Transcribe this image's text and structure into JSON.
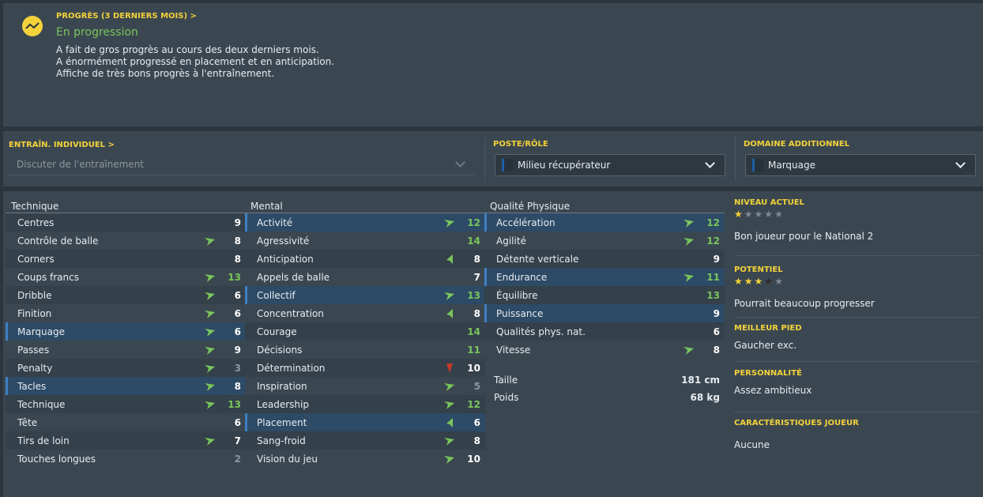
{
  "progress": {
    "title": "PROGRÈS (3 DERNIERS MOIS) >",
    "status": "En progression",
    "lines": [
      "A fait de gros progrès au cours des deux derniers mois.",
      "A énormément progressé en placement et en anticipation.",
      "Affiche de très bons progrès à l'entraînement."
    ]
  },
  "training": {
    "title": "ENTRAÎN. INDIVIDUEL >",
    "placeholder": "Discuter de l'entraînement"
  },
  "role": {
    "title": "POSTE/RÔLE",
    "value": "Milieu récupérateur"
  },
  "extra_domain": {
    "title": "DOMAINE ADDITIONNEL",
    "value": "Marquage"
  },
  "columns": {
    "technique": {
      "title": "Technique",
      "rows": [
        {
          "label": "Centres",
          "value": "9",
          "arrow": "",
          "style": "white",
          "hl": false
        },
        {
          "label": "Contrôle de balle",
          "value": "8",
          "arrow": "up",
          "style": "white",
          "hl": false
        },
        {
          "label": "Corners",
          "value": "8",
          "arrow": "",
          "style": "white",
          "hl": false
        },
        {
          "label": "Coups francs",
          "value": "13",
          "arrow": "up",
          "style": "green",
          "hl": false
        },
        {
          "label": "Dribble",
          "value": "6",
          "arrow": "up",
          "style": "white",
          "hl": false
        },
        {
          "label": "Finition",
          "value": "6",
          "arrow": "up",
          "style": "white",
          "hl": false
        },
        {
          "label": "Marquage",
          "value": "6",
          "arrow": "up",
          "style": "white",
          "hl": true
        },
        {
          "label": "Passes",
          "value": "9",
          "arrow": "up",
          "style": "white",
          "hl": false
        },
        {
          "label": "Penalty",
          "value": "3",
          "arrow": "up",
          "style": "grey",
          "hl": false
        },
        {
          "label": "Tacles",
          "value": "8",
          "arrow": "up",
          "style": "white",
          "hl": true
        },
        {
          "label": "Technique",
          "value": "13",
          "arrow": "up",
          "style": "green",
          "hl": false
        },
        {
          "label": "Tête",
          "value": "6",
          "arrow": "",
          "style": "white",
          "hl": false
        },
        {
          "label": "Tirs de loin",
          "value": "7",
          "arrow": "up",
          "style": "white",
          "hl": false
        },
        {
          "label": "Touches longues",
          "value": "2",
          "arrow": "",
          "style": "grey",
          "hl": false
        }
      ]
    },
    "mental": {
      "title": "Mental",
      "rows": [
        {
          "label": "Activité",
          "value": "12",
          "arrow": "up",
          "style": "green",
          "hl": true
        },
        {
          "label": "Agressivité",
          "value": "14",
          "arrow": "",
          "style": "green",
          "hl": false
        },
        {
          "label": "Anticipation",
          "value": "8",
          "arrow": "upsteep",
          "style": "white",
          "hl": false
        },
        {
          "label": "Appels de balle",
          "value": "7",
          "arrow": "",
          "style": "white",
          "hl": false
        },
        {
          "label": "Collectif",
          "value": "13",
          "arrow": "up",
          "style": "green",
          "hl": true
        },
        {
          "label": "Concentration",
          "value": "8",
          "arrow": "upsteep",
          "style": "white",
          "hl": false
        },
        {
          "label": "Courage",
          "value": "14",
          "arrow": "",
          "style": "green",
          "hl": false
        },
        {
          "label": "Décisions",
          "value": "11",
          "arrow": "",
          "style": "green",
          "hl": false
        },
        {
          "label": "Détermination",
          "value": "10",
          "arrow": "down",
          "style": "white",
          "hl": false
        },
        {
          "label": "Inspiration",
          "value": "5",
          "arrow": "up",
          "style": "grey",
          "hl": false
        },
        {
          "label": "Leadership",
          "value": "12",
          "arrow": "up",
          "style": "green",
          "hl": false
        },
        {
          "label": "Placement",
          "value": "6",
          "arrow": "upsteep",
          "style": "white",
          "hl": true
        },
        {
          "label": "Sang-froid",
          "value": "8",
          "arrow": "up",
          "style": "white",
          "hl": false
        },
        {
          "label": "Vision du jeu",
          "value": "10",
          "arrow": "up",
          "style": "white",
          "hl": false
        }
      ]
    },
    "physical": {
      "title": "Qualité Physique",
      "rows": [
        {
          "label": "Accélération",
          "value": "12",
          "arrow": "up",
          "style": "green",
          "hl": true
        },
        {
          "label": "Agilité",
          "value": "12",
          "arrow": "up",
          "style": "green",
          "hl": false
        },
        {
          "label": "Détente verticale",
          "value": "9",
          "arrow": "",
          "style": "white",
          "hl": false
        },
        {
          "label": "Endurance",
          "value": "11",
          "arrow": "up",
          "style": "green",
          "hl": true
        },
        {
          "label": "Équilibre",
          "value": "13",
          "arrow": "",
          "style": "green",
          "hl": false
        },
        {
          "label": "Puissance",
          "value": "9",
          "arrow": "",
          "style": "white",
          "hl": true
        },
        {
          "label": "Qualités phys. nat.",
          "value": "6",
          "arrow": "",
          "style": "white",
          "hl": false
        },
        {
          "label": "Vitesse",
          "value": "8",
          "arrow": "up",
          "style": "white",
          "hl": false
        }
      ],
      "height_label": "Taille",
      "height_value": "181 cm",
      "weight_label": "Poids",
      "weight_value": "68 kg"
    }
  },
  "info": {
    "current_title": "NIVEAU ACTUEL",
    "current_stars": 1,
    "current_text": "Bon joueur pour le National 2",
    "potential_title": "POTENTIEL",
    "potential_stars": 3.5,
    "potential_text": "Pourrait beaucoup progresser",
    "foot_title": "MEILLEUR PIED",
    "foot_text": "Gaucher exc.",
    "personality_title": "PERSONNALITÉ",
    "personality_text": "Assez ambitieux",
    "traits_title": "CARACTÉRISTIQUES JOUEUR",
    "traits_text": "Aucune"
  },
  "colors": {
    "accent_yellow": "#f3d23a",
    "good_green": "#79c55c",
    "highlight_blue": "#2d4a66",
    "down_red": "#c0392b"
  }
}
